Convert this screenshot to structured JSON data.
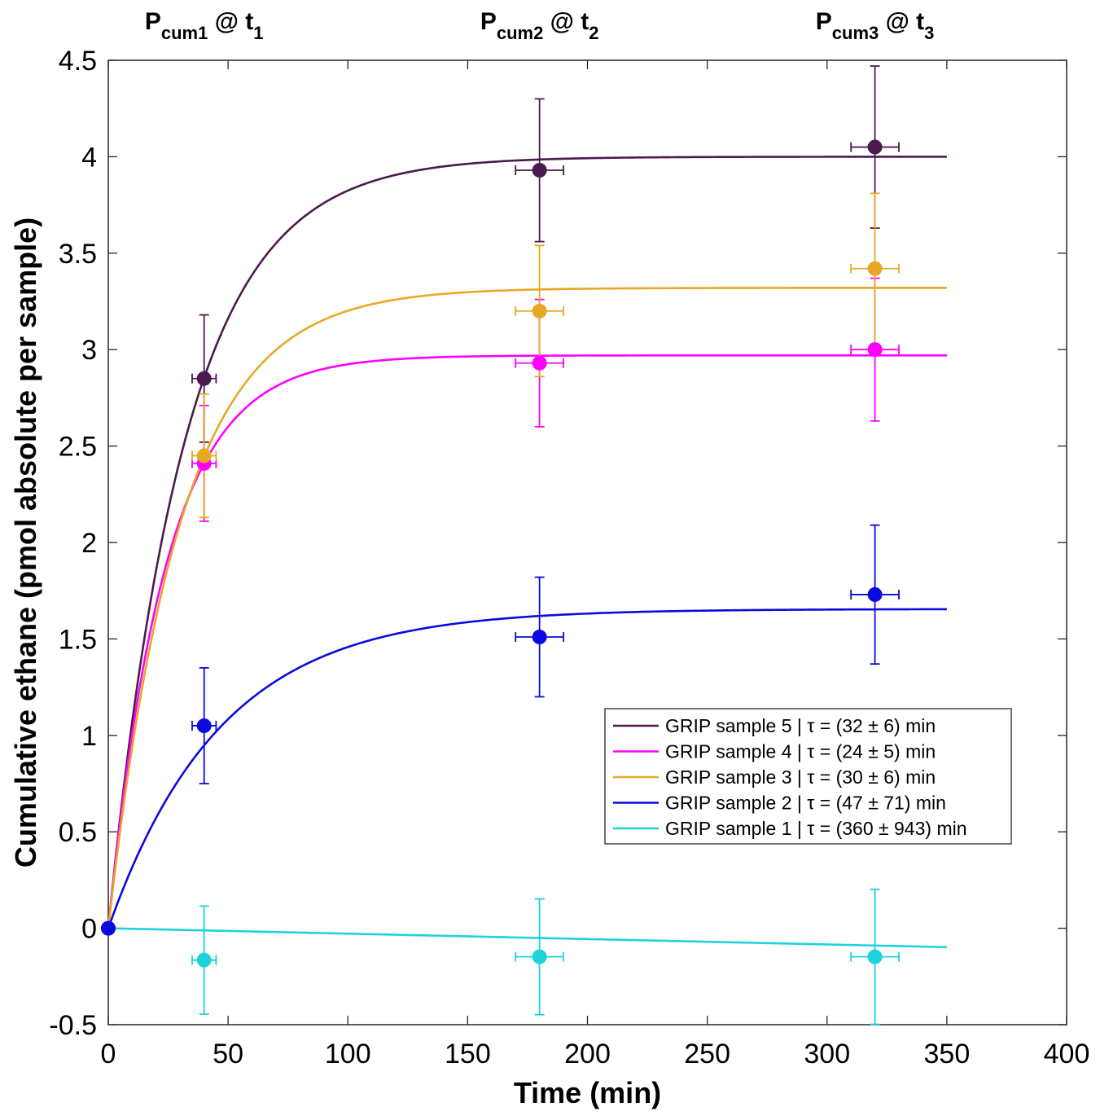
{
  "chart_data": {
    "type": "scatter",
    "title": "",
    "xlabel": "Time (min)",
    "ylabel": "Cumulative ethane (pmol absolute per sample)",
    "xlim": [
      0,
      400
    ],
    "ylim": [
      -0.5,
      4.5
    ],
    "x_ticks": [
      0,
      50,
      100,
      150,
      200,
      250,
      300,
      350,
      400
    ],
    "y_ticks": [
      -0.5,
      0,
      0.5,
      1,
      1.5,
      2,
      2.5,
      3,
      3.5,
      4,
      4.5
    ],
    "x_tick_labels": [
      "0",
      "50",
      "100",
      "150",
      "200",
      "250",
      "300",
      "350",
      "400"
    ],
    "y_tick_labels": [
      "-0.5",
      "0",
      "0.5",
      "1",
      "1.5",
      "2",
      "2.5",
      "3",
      "3.5",
      "4",
      "4.5"
    ],
    "grid": false,
    "legend_position": "lower-right",
    "top_labels": [
      {
        "x": 40,
        "base": "P",
        "sub1": "cum1",
        "mid": " @ t",
        "sub2": "1"
      },
      {
        "x": 180,
        "base": "P",
        "sub1": "cum2",
        "mid": " @ t",
        "sub2": "2"
      },
      {
        "x": 320,
        "base": "P",
        "sub1": "cum3",
        "mid": " @ t",
        "sub2": "3"
      }
    ],
    "fit_x_end": 350,
    "series": [
      {
        "name": "GRIP sample 5",
        "legend": "GRIP sample 5 | τ = (32 ± 6) min",
        "color": "#4b1a4f",
        "fit": {
          "A": 4.0,
          "tau": 32
        },
        "points": [
          {
            "x": 0,
            "y": 0,
            "xerr": 0,
            "yerr": 0
          },
          {
            "x": 40,
            "y": 2.85,
            "xerr": 5,
            "yerr": 0.33
          },
          {
            "x": 180,
            "y": 3.93,
            "xerr": 10,
            "yerr": 0.37
          },
          {
            "x": 320,
            "y": 4.05,
            "xerr": 10,
            "yerr": 0.42
          }
        ]
      },
      {
        "name": "GRIP sample 4",
        "legend": "GRIP sample 4 | τ = (24 ± 5) min",
        "color": "#ff00ff",
        "fit": {
          "A": 2.97,
          "tau": 24
        },
        "points": [
          {
            "x": 0,
            "y": 0,
            "xerr": 0,
            "yerr": 0
          },
          {
            "x": 40,
            "y": 2.41,
            "xerr": 5,
            "yerr": 0.3
          },
          {
            "x": 180,
            "y": 2.93,
            "xerr": 10,
            "yerr": 0.33
          },
          {
            "x": 320,
            "y": 3.0,
            "xerr": 10,
            "yerr": 0.37
          }
        ]
      },
      {
        "name": "GRIP sample 3",
        "legend": "GRIP sample 3 | τ = (30 ± 6) min",
        "color": "#e8a825",
        "fit": {
          "A": 3.32,
          "tau": 30
        },
        "points": [
          {
            "x": 0,
            "y": 0,
            "xerr": 0,
            "yerr": 0
          },
          {
            "x": 40,
            "y": 2.45,
            "xerr": 5,
            "yerr": 0.32
          },
          {
            "x": 180,
            "y": 3.2,
            "xerr": 10,
            "yerr": 0.34
          },
          {
            "x": 320,
            "y": 3.42,
            "xerr": 10,
            "yerr": 0.39
          }
        ]
      },
      {
        "name": "GRIP sample 2",
        "legend": "GRIP sample 2 | τ = (47 ± 71) min",
        "color": "#0a0ae0",
        "fit": {
          "A": 1.655,
          "tau": 47
        },
        "points": [
          {
            "x": 0,
            "y": 0,
            "xerr": 0,
            "yerr": 0
          },
          {
            "x": 40,
            "y": 1.05,
            "xerr": 5,
            "yerr": 0.3
          },
          {
            "x": 180,
            "y": 1.51,
            "xerr": 10,
            "yerr": 0.31
          },
          {
            "x": 320,
            "y": 1.73,
            "xerr": 10,
            "yerr": 0.36
          }
        ]
      },
      {
        "name": "GRIP sample 1",
        "legend": "GRIP sample 1 | τ = (360 ± 943) min",
        "color": "#1ed3db",
        "fit": {
          "slope": -0.00028
        },
        "points": [
          {
            "x": 40,
            "y": -0.165,
            "xerr": 5,
            "yerr": 0.28
          },
          {
            "x": 180,
            "y": -0.148,
            "xerr": 10,
            "yerr": 0.3
          },
          {
            "x": 320,
            "y": -0.148,
            "xerr": 10,
            "yerr": 0.35
          }
        ]
      }
    ]
  }
}
